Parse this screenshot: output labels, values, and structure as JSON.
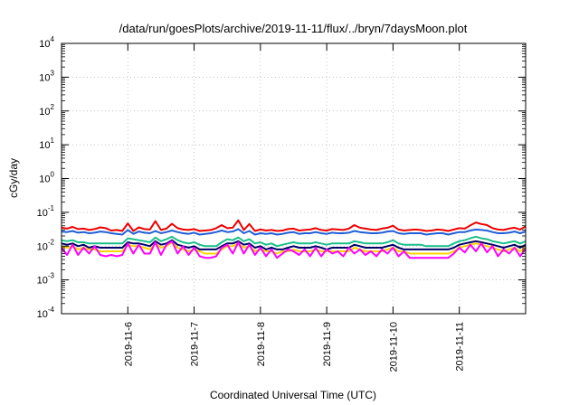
{
  "chart_data": {
    "type": "line",
    "title": "/data/run/goesPlots/archive/2019-11-11/flux/../bryn/7daysMoon.plot",
    "xlabel": "Coordinated Universal Time (UTC)",
    "ylabel": "cGy/day",
    "yscale": "log",
    "ylim": [
      0.0001,
      10000
    ],
    "y_ticks": [
      {
        "base": "10",
        "exp": "-4",
        "value": 0.0001
      },
      {
        "base": "10",
        "exp": "-3",
        "value": 0.001
      },
      {
        "base": "10",
        "exp": "-2",
        "value": 0.01
      },
      {
        "base": "10",
        "exp": "-1",
        "value": 0.1
      },
      {
        "base": "10",
        "exp": "0",
        "value": 1
      },
      {
        "base": "10",
        "exp": "1",
        "value": 10
      },
      {
        "base": "10",
        "exp": "2",
        "value": 100
      },
      {
        "base": "10",
        "exp": "3",
        "value": 1000
      },
      {
        "base": "10",
        "exp": "4",
        "value": 10000
      }
    ],
    "x_ticks": [
      "2019-11-6",
      "2019-11-7",
      "2019-11-8",
      "2019-11-9",
      "2019-11-10",
      "2019-11-11"
    ],
    "xlim": [
      "2019-11-05",
      "2019-11-12"
    ],
    "grid": true,
    "sample_hours": [
      0,
      2,
      4,
      6,
      8,
      10,
      12,
      14,
      16,
      18,
      20,
      22,
      24,
      26,
      28,
      30,
      32,
      34,
      36,
      38,
      40,
      42,
      44,
      46,
      48,
      50,
      52,
      54,
      56,
      58,
      60,
      62,
      64,
      66,
      68,
      70,
      72,
      74,
      76,
      78,
      80,
      82,
      84,
      86,
      88,
      90,
      92,
      94,
      96,
      98,
      100,
      102,
      104,
      106,
      108,
      110,
      112,
      114,
      116,
      118,
      120,
      122,
      124,
      126,
      128,
      130,
      132,
      134,
      136,
      138,
      140,
      142,
      144,
      146,
      148,
      150,
      152,
      154,
      156,
      158,
      160,
      162,
      164,
      166,
      168
    ],
    "series": [
      {
        "color": "#ee0000",
        "values": [
          0.035,
          0.033,
          0.037,
          0.032,
          0.033,
          0.03,
          0.032,
          0.036,
          0.034,
          0.029,
          0.03,
          0.028,
          0.047,
          0.028,
          0.036,
          0.032,
          0.031,
          0.055,
          0.03,
          0.033,
          0.046,
          0.034,
          0.031,
          0.03,
          0.032,
          0.028,
          0.029,
          0.03,
          0.034,
          0.042,
          0.034,
          0.035,
          0.058,
          0.03,
          0.045,
          0.028,
          0.031,
          0.029,
          0.03,
          0.028,
          0.029,
          0.032,
          0.033,
          0.029,
          0.03,
          0.031,
          0.034,
          0.03,
          0.029,
          0.032,
          0.031,
          0.03,
          0.033,
          0.042,
          0.035,
          0.033,
          0.031,
          0.03,
          0.033,
          0.035,
          0.04,
          0.031,
          0.029,
          0.03,
          0.031,
          0.03,
          0.028,
          0.029,
          0.031,
          0.03,
          0.028,
          0.031,
          0.034,
          0.033,
          0.041,
          0.05,
          0.045,
          0.042,
          0.034,
          0.031,
          0.03,
          0.033,
          0.035,
          0.031,
          0.038
        ]
      },
      {
        "color": "#1f5fd6",
        "values": [
          0.027,
          0.026,
          0.028,
          0.025,
          0.026,
          0.024,
          0.025,
          0.027,
          0.026,
          0.024,
          0.023,
          0.022,
          0.03,
          0.023,
          0.027,
          0.025,
          0.024,
          0.028,
          0.024,
          0.026,
          0.029,
          0.026,
          0.024,
          0.023,
          0.025,
          0.022,
          0.023,
          0.024,
          0.026,
          0.029,
          0.026,
          0.027,
          0.032,
          0.024,
          0.028,
          0.022,
          0.024,
          0.023,
          0.024,
          0.022,
          0.023,
          0.025,
          0.026,
          0.023,
          0.024,
          0.024,
          0.026,
          0.024,
          0.023,
          0.025,
          0.024,
          0.024,
          0.025,
          0.028,
          0.026,
          0.025,
          0.024,
          0.024,
          0.025,
          0.027,
          0.028,
          0.024,
          0.023,
          0.024,
          0.024,
          0.024,
          0.022,
          0.023,
          0.024,
          0.024,
          0.022,
          0.024,
          0.026,
          0.026,
          0.029,
          0.031,
          0.03,
          0.029,
          0.026,
          0.024,
          0.024,
          0.025,
          0.027,
          0.024,
          0.027
        ]
      },
      {
        "color": "#1cbe8a",
        "values": [
          0.015,
          0.014,
          0.015,
          0.013,
          0.013,
          0.012,
          0.012,
          0.012,
          0.012,
          0.012,
          0.012,
          0.012,
          0.017,
          0.016,
          0.015,
          0.014,
          0.013,
          0.018,
          0.014,
          0.016,
          0.019,
          0.015,
          0.013,
          0.012,
          0.013,
          0.011,
          0.01,
          0.01,
          0.01,
          0.013,
          0.016,
          0.015,
          0.018,
          0.014,
          0.016,
          0.012,
          0.013,
          0.011,
          0.012,
          0.01,
          0.011,
          0.012,
          0.013,
          0.012,
          0.012,
          0.012,
          0.013,
          0.012,
          0.011,
          0.012,
          0.012,
          0.012,
          0.012,
          0.014,
          0.013,
          0.012,
          0.012,
          0.012,
          0.012,
          0.013,
          0.015,
          0.012,
          0.011,
          0.011,
          0.011,
          0.011,
          0.01,
          0.01,
          0.01,
          0.01,
          0.01,
          0.012,
          0.014,
          0.015,
          0.017,
          0.019,
          0.017,
          0.016,
          0.014,
          0.013,
          0.012,
          0.013,
          0.014,
          0.012,
          0.014
        ]
      },
      {
        "color": "#000066",
        "values": [
          0.012,
          0.011,
          0.012,
          0.01,
          0.011,
          0.009,
          0.01,
          0.009,
          0.009,
          0.009,
          0.009,
          0.009,
          0.013,
          0.012,
          0.012,
          0.011,
          0.01,
          0.014,
          0.011,
          0.012,
          0.015,
          0.011,
          0.01,
          0.009,
          0.01,
          0.008,
          0.008,
          0.008,
          0.008,
          0.01,
          0.012,
          0.012,
          0.014,
          0.011,
          0.012,
          0.009,
          0.01,
          0.008,
          0.009,
          0.008,
          0.008,
          0.009,
          0.01,
          0.009,
          0.009,
          0.009,
          0.01,
          0.009,
          0.008,
          0.009,
          0.009,
          0.009,
          0.009,
          0.011,
          0.01,
          0.009,
          0.009,
          0.009,
          0.009,
          0.01,
          0.011,
          0.009,
          0.008,
          0.008,
          0.008,
          0.008,
          0.008,
          0.008,
          0.008,
          0.008,
          0.008,
          0.009,
          0.011,
          0.012,
          0.013,
          0.014,
          0.013,
          0.012,
          0.011,
          0.01,
          0.009,
          0.01,
          0.011,
          0.009,
          0.011
        ]
      },
      {
        "color": "#ffd400",
        "values": [
          0.01,
          0.009,
          0.01,
          0.008,
          0.009,
          0.008,
          0.008,
          0.007,
          0.007,
          0.007,
          0.007,
          0.007,
          0.011,
          0.01,
          0.01,
          0.009,
          0.008,
          0.012,
          0.009,
          0.01,
          0.013,
          0.009,
          0.008,
          0.007,
          0.008,
          0.007,
          0.006,
          0.006,
          0.006,
          0.008,
          0.01,
          0.01,
          0.012,
          0.009,
          0.01,
          0.007,
          0.008,
          0.007,
          0.007,
          0.006,
          0.007,
          0.007,
          0.008,
          0.007,
          0.007,
          0.007,
          0.008,
          0.007,
          0.007,
          0.007,
          0.007,
          0.007,
          0.007,
          0.009,
          0.008,
          0.007,
          0.007,
          0.007,
          0.007,
          0.008,
          0.009,
          0.007,
          0.007,
          0.006,
          0.006,
          0.006,
          0.006,
          0.006,
          0.006,
          0.006,
          0.006,
          0.007,
          0.009,
          0.01,
          0.011,
          0.012,
          0.011,
          0.01,
          0.009,
          0.008,
          0.007,
          0.008,
          0.009,
          0.007,
          0.009
        ]
      },
      {
        "color": "#ff00ff",
        "values": [
          0.009,
          0.0055,
          0.011,
          0.0055,
          0.009,
          0.006,
          0.01,
          0.0055,
          0.005,
          0.0055,
          0.005,
          0.0055,
          0.012,
          0.006,
          0.011,
          0.006,
          0.006,
          0.013,
          0.0055,
          0.011,
          0.014,
          0.006,
          0.01,
          0.0055,
          0.009,
          0.005,
          0.0045,
          0.0045,
          0.005,
          0.009,
          0.011,
          0.006,
          0.013,
          0.006,
          0.011,
          0.0055,
          0.009,
          0.005,
          0.008,
          0.0045,
          0.006,
          0.008,
          0.007,
          0.0055,
          0.008,
          0.005,
          0.009,
          0.005,
          0.008,
          0.006,
          0.007,
          0.005,
          0.009,
          0.006,
          0.008,
          0.0055,
          0.007,
          0.005,
          0.008,
          0.006,
          0.009,
          0.005,
          0.007,
          0.0045,
          0.0045,
          0.0045,
          0.0045,
          0.0045,
          0.0045,
          0.0045,
          0.0045,
          0.006,
          0.009,
          0.0065,
          0.011,
          0.007,
          0.012,
          0.0065,
          0.01,
          0.005,
          0.008,
          0.006,
          0.009,
          0.005,
          0.0085
        ]
      }
    ]
  }
}
